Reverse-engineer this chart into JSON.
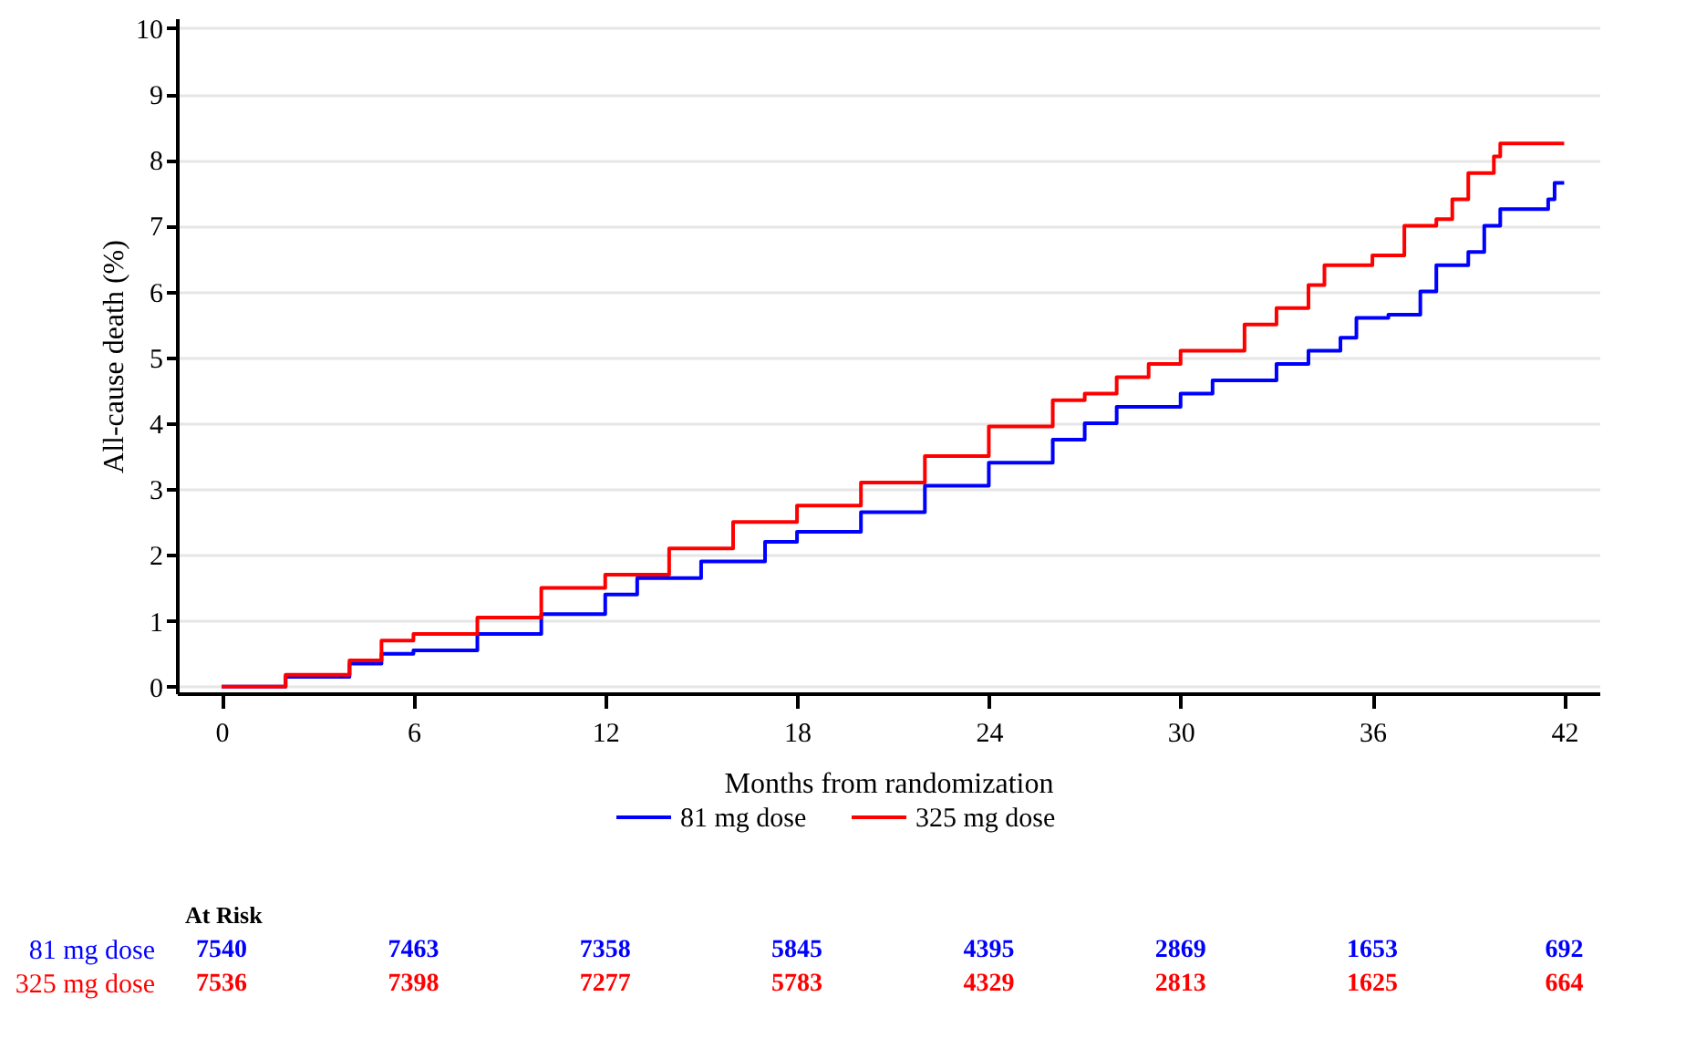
{
  "chart_data": {
    "type": "step",
    "xlabel": "Months from randomization",
    "ylabel": "All-cause death (%)",
    "xlim": [
      -1.4,
      43.1
    ],
    "xticks": [
      0,
      6,
      12,
      18,
      24,
      30,
      36,
      42
    ],
    "ylim": [
      -0.1,
      10.15
    ],
    "yticks": [
      0,
      1,
      2,
      3,
      4,
      5,
      6,
      7,
      8,
      9,
      10
    ],
    "grid": "y",
    "legend": "bottom",
    "line_style": "solid",
    "marker": "none",
    "series": [
      {
        "name": "81 mg dose",
        "color": "#0000ff",
        "x": [
          0,
          2,
          4,
          5,
          6,
          8,
          10,
          12,
          13,
          15,
          17,
          18,
          20,
          22,
          24,
          26,
          27,
          28,
          30,
          31,
          33,
          34,
          35,
          35.5,
          36.5,
          37.5,
          38,
          39,
          39.5,
          40,
          41.5,
          41.7,
          42
        ],
        "values": [
          0,
          0.15,
          0.35,
          0.5,
          0.55,
          0.8,
          1.1,
          1.4,
          1.65,
          1.9,
          2.2,
          2.35,
          2.65,
          3.05,
          3.4,
          3.75,
          4.0,
          4.25,
          4.45,
          4.65,
          4.9,
          5.1,
          5.3,
          5.6,
          5.65,
          6.0,
          6.4,
          6.6,
          7.0,
          7.25,
          7.4,
          7.65,
          7.65
        ]
      },
      {
        "name": "325 mg dose",
        "color": "#ff0000",
        "x": [
          0,
          2,
          4,
          5,
          6,
          8,
          10,
          12,
          14,
          16,
          18,
          20,
          22,
          24,
          26,
          27,
          28,
          29,
          30,
          32,
          33,
          34,
          34.5,
          35.5,
          36,
          37,
          38,
          38.5,
          39,
          39.8,
          40,
          42
        ],
        "values": [
          0,
          0.18,
          0.4,
          0.7,
          0.8,
          1.05,
          1.5,
          1.7,
          2.1,
          2.5,
          2.75,
          3.1,
          3.5,
          3.95,
          4.35,
          4.45,
          4.7,
          4.9,
          5.1,
          5.5,
          5.75,
          6.1,
          6.4,
          6.4,
          6.55,
          7.0,
          7.1,
          7.4,
          7.8,
          8.05,
          8.25,
          8.25
        ]
      }
    ],
    "annotations": [
      "At Risk",
      "7540",
      "7463",
      "7358",
      "5845",
      "4395",
      "2869",
      "1653",
      "692",
      "7536",
      "7398",
      "7277",
      "5783",
      "4329",
      "2813",
      "1625",
      "664"
    ]
  }
}
